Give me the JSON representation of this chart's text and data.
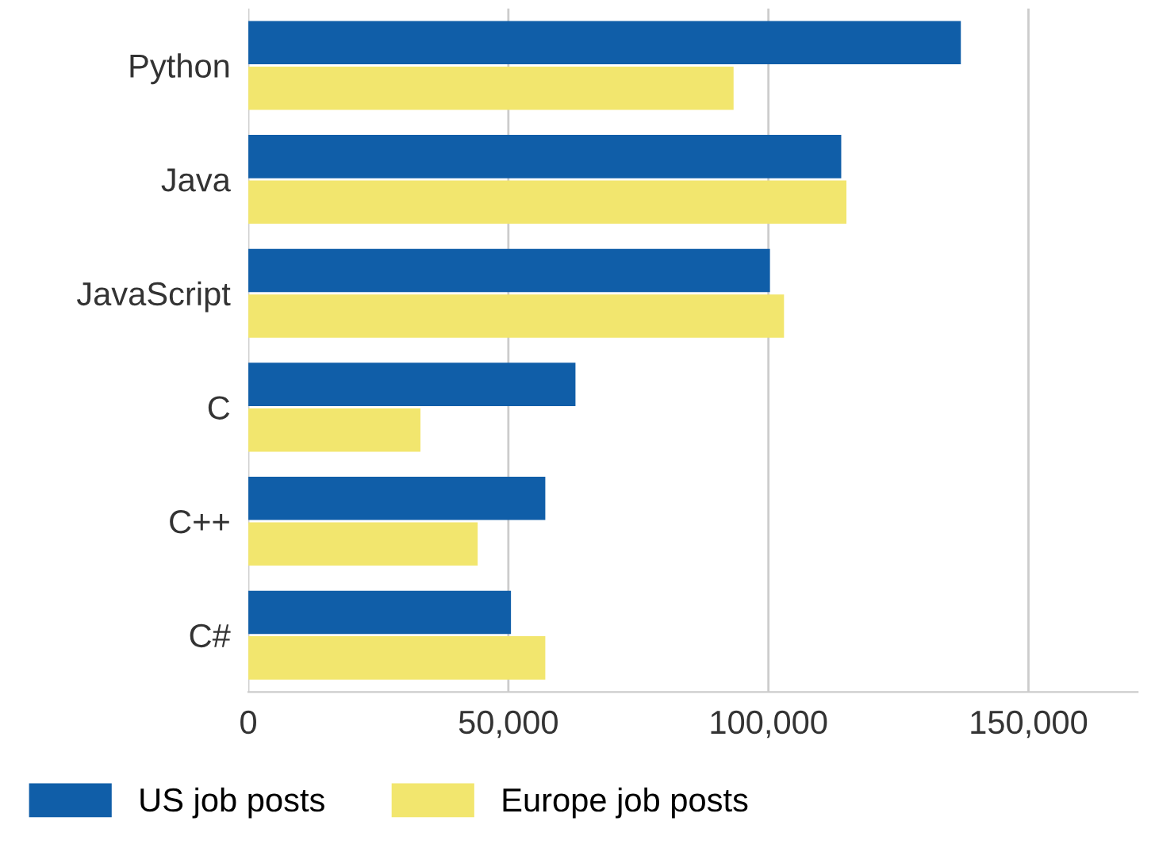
{
  "chart_data": {
    "type": "bar",
    "orientation": "horizontal",
    "categories": [
      "Python",
      "Java",
      "JavaScript",
      "C",
      "C++",
      "C#"
    ],
    "series": [
      {
        "name": "US job posts",
        "color": "#105ea8",
        "values": [
          137000,
          114000,
          100300,
          62900,
          57100,
          50500
        ]
      },
      {
        "name": "Europe job posts",
        "color": "#f2e66e",
        "values": [
          93300,
          115000,
          103000,
          33100,
          44100,
          57100
        ]
      }
    ],
    "xlim": [
      0,
      171000
    ],
    "xticks": [
      {
        "value": 0,
        "label": "0"
      },
      {
        "value": 50000,
        "label": "50,000"
      },
      {
        "value": 100000,
        "label": "100,000"
      },
      {
        "value": 150000,
        "label": "150,000"
      }
    ],
    "grid": "x",
    "legend": "bottom"
  }
}
